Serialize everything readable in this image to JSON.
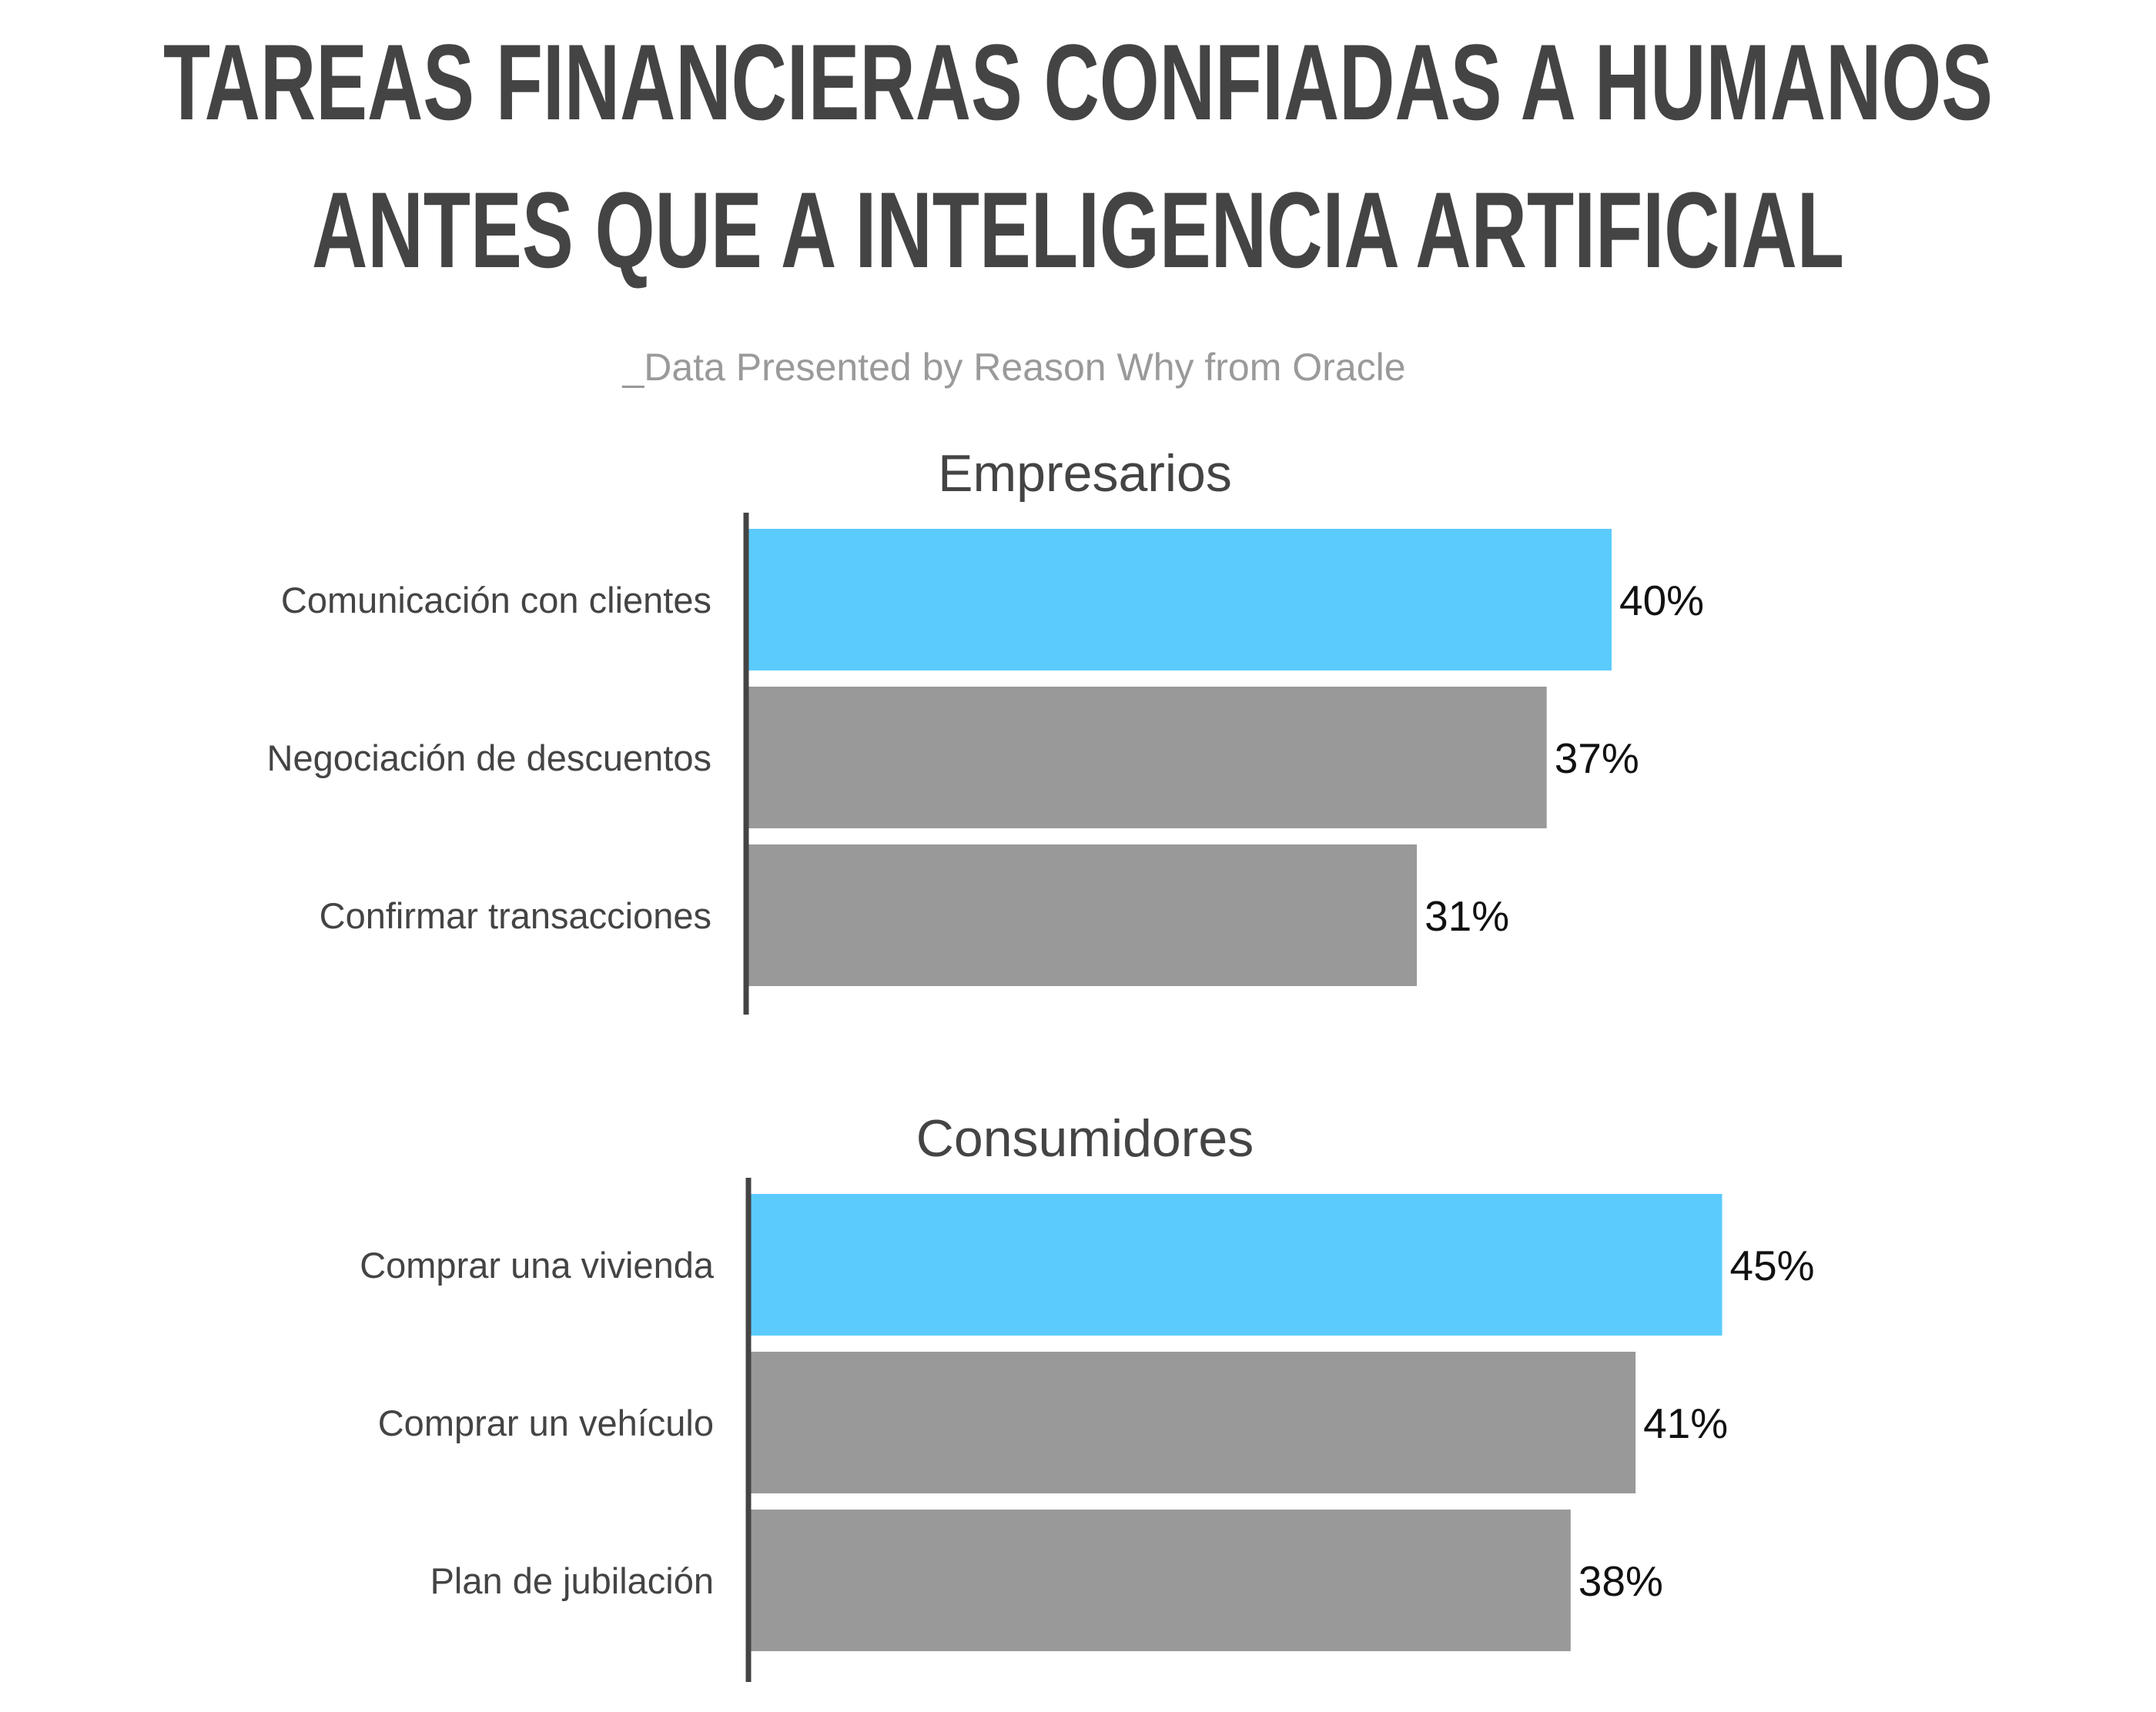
{
  "title": [
    "TAREAS FINANCIERAS CONFIADAS A HUMANOS",
    "ANTES QUE A INTELIGENCIA ARTIFICIAL"
  ],
  "subtitle": "_Data Presented by Reason Why from Oracle",
  "chart_data": [
    {
      "type": "bar",
      "title": "Empresarios",
      "categories": [
        "Comunicación con clientes",
        "Negociación de descuentos",
        "Confirmar transacciones"
      ],
      "values": [
        40,
        37,
        31
      ],
      "value_labels": [
        "40%",
        "37%",
        "31%"
      ],
      "colors": [
        "#5bcbfd",
        "#999999",
        "#999999"
      ]
    },
    {
      "type": "bar",
      "title": "Consumidores",
      "categories": [
        "Comprar una vivienda",
        "Comprar un vehículo",
        "Plan de jubilación"
      ],
      "values": [
        45,
        41,
        38
      ],
      "value_labels": [
        "45%",
        "41%",
        "38%"
      ],
      "colors": [
        "#5bcbfd",
        "#999999",
        "#999999"
      ]
    }
  ]
}
